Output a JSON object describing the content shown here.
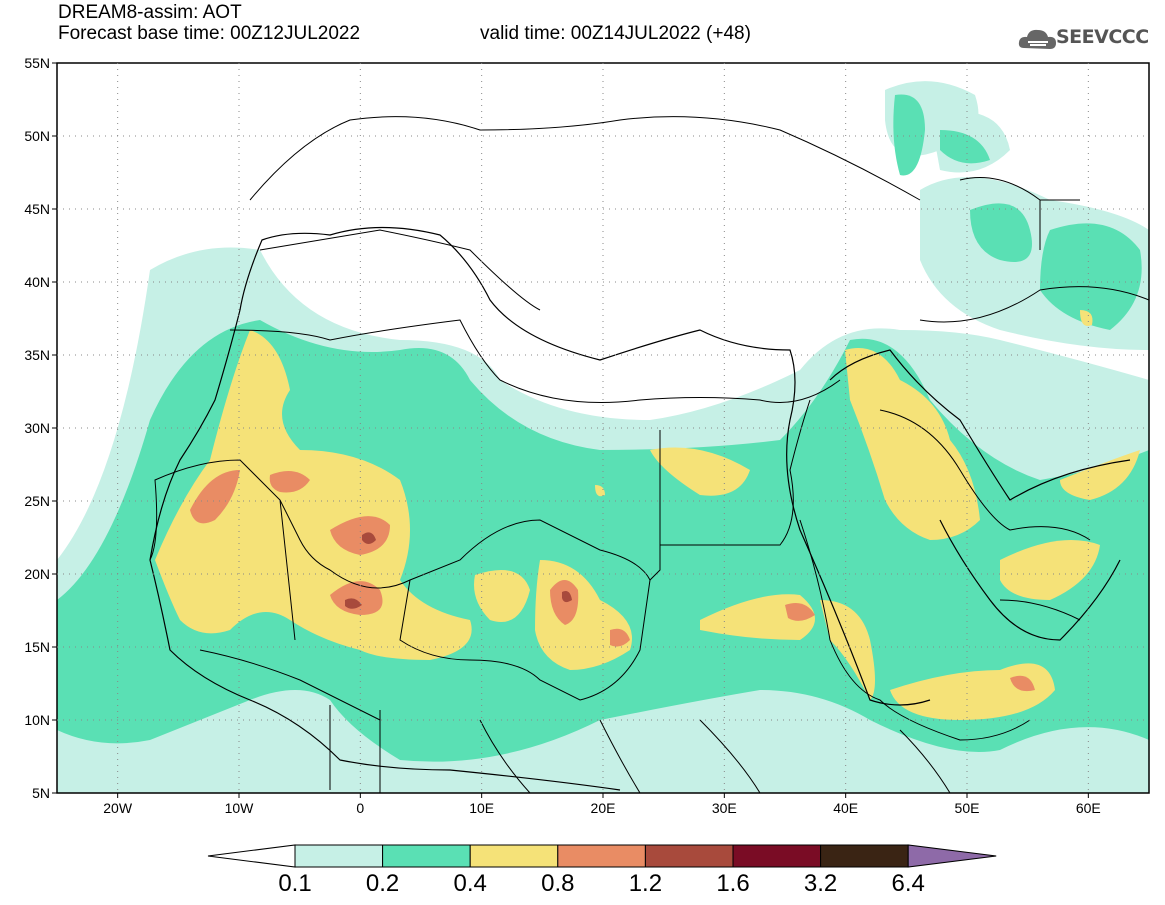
{
  "title": {
    "line1": "DREAM8-assim: AOT",
    "line2a": "Forecast base time: 00Z12JUL2022",
    "line2b": "valid time: 00Z14JUL2022 (+48)"
  },
  "logo": {
    "text": "SEEVCCC",
    "icon": "cloud-logo-icon"
  },
  "axes": {
    "lat_labels": [
      "55N",
      "50N",
      "45N",
      "40N",
      "35N",
      "30N",
      "25N",
      "20N",
      "15N",
      "10N",
      "5N"
    ],
    "lon_labels": [
      "20W",
      "10W",
      "0",
      "10E",
      "20E",
      "30E",
      "40E",
      "50E",
      "60E"
    ],
    "lon_range": [
      -25,
      65
    ],
    "lat_range": [
      5,
      55
    ],
    "grid": "dotted"
  },
  "colorbar": {
    "labels": [
      "0.1",
      "0.2",
      "0.4",
      "0.8",
      "1.2",
      "1.6",
      "3.2",
      "6.4"
    ],
    "colors": [
      "#ffffff",
      "#c6f0e6",
      "#5ae0b4",
      "#f5e278",
      "#e98c64",
      "#a84a3c",
      "#7a0c25",
      "#3a2414",
      "#8e6aa8"
    ]
  },
  "chart_data": {
    "type": "heatmap",
    "variable": "AOT",
    "levels": [
      0.1,
      0.2,
      0.4,
      0.8,
      1.2,
      1.6,
      3.2,
      6.4
    ]
  }
}
